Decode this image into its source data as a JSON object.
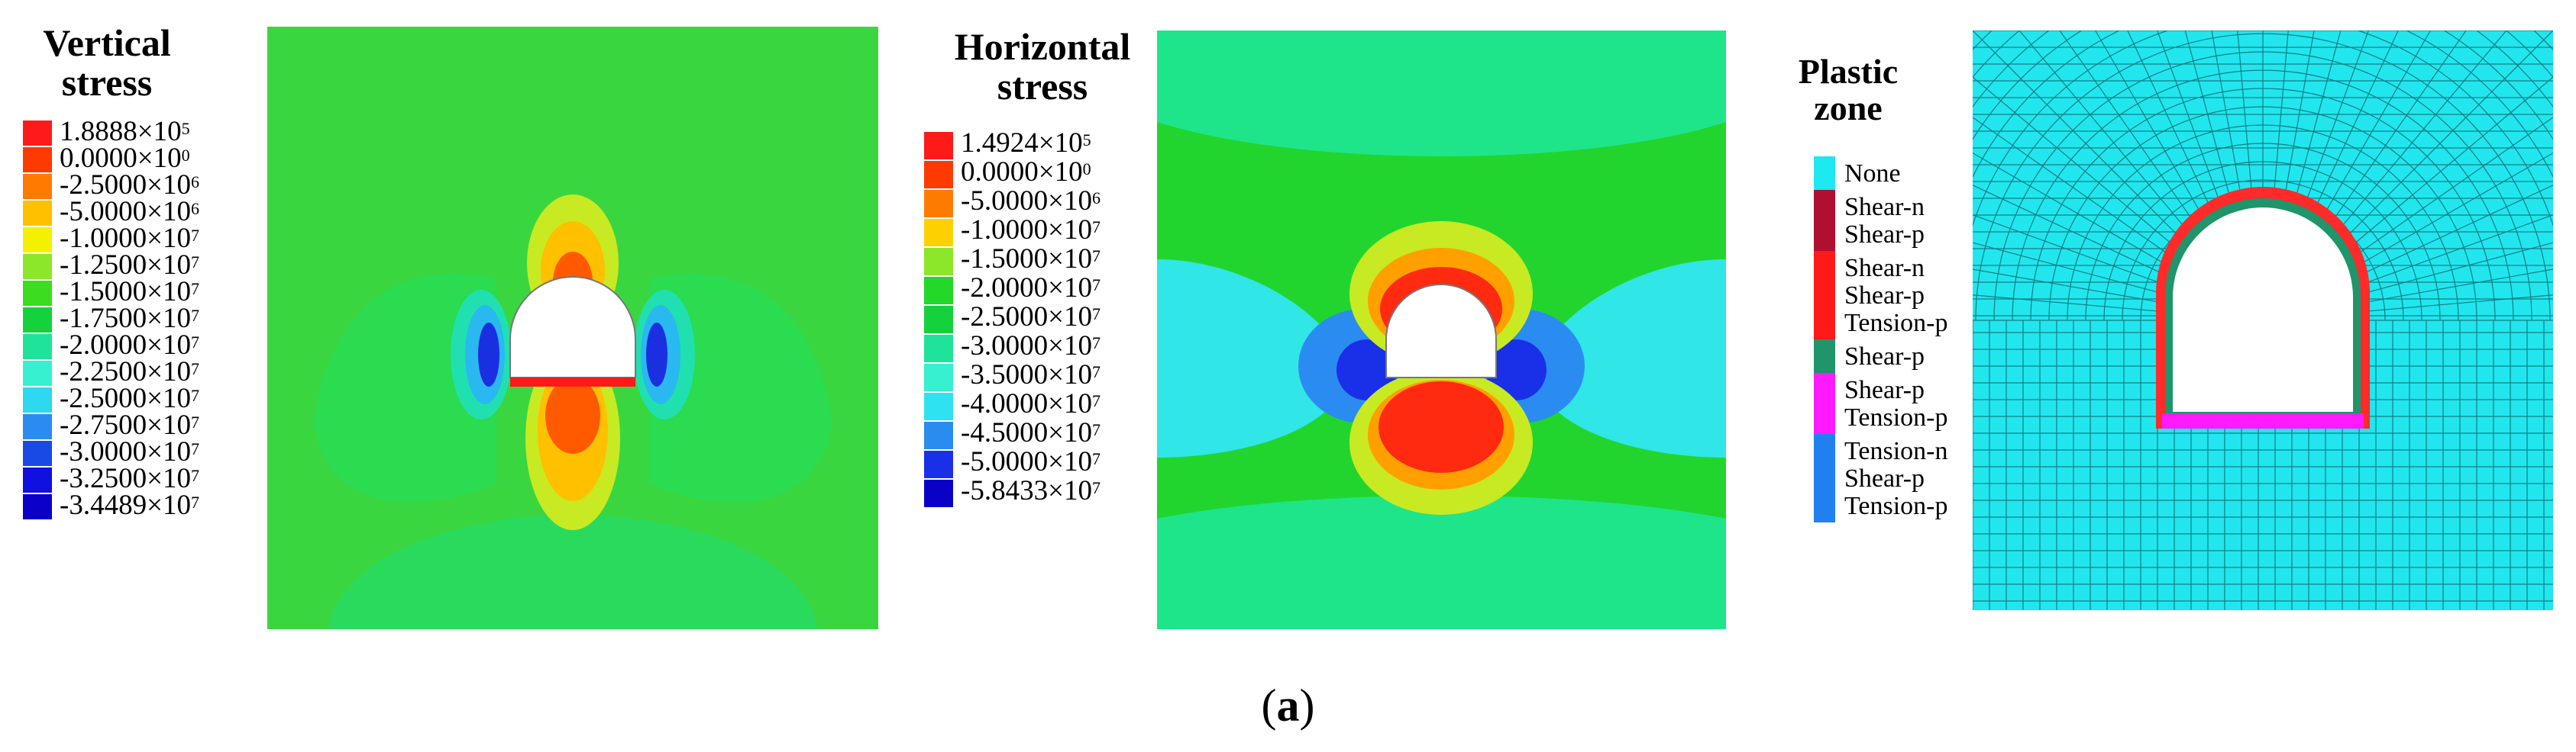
{
  "panels": [
    {
      "id": "vertical",
      "title_lines": [
        "Vertical",
        "stress"
      ],
      "legend": [
        {
          "mantissa": "1.8888",
          "exp": "5",
          "color": "#ff1a1a"
        },
        {
          "mantissa": "0.0000",
          "exp": "0",
          "color": "#ff3a00"
        },
        {
          "mantissa": "-2.5000",
          "exp": "6",
          "color": "#ff7a00"
        },
        {
          "mantissa": "-5.0000",
          "exp": "6",
          "color": "#ffc000"
        },
        {
          "mantissa": "-1.0000",
          "exp": "7",
          "color": "#f2f200"
        },
        {
          "mantissa": "-1.2500",
          "exp": "7",
          "color": "#8ce62a"
        },
        {
          "mantissa": "-1.5000",
          "exp": "7",
          "color": "#3cdc1e"
        },
        {
          "mantissa": "-1.7500",
          "exp": "7",
          "color": "#15d23c"
        },
        {
          "mantissa": "-2.0000",
          "exp": "7",
          "color": "#20e39a"
        },
        {
          "mantissa": "-2.2500",
          "exp": "7",
          "color": "#37f0d0"
        },
        {
          "mantissa": "-2.5000",
          "exp": "7",
          "color": "#2dd8f0"
        },
        {
          "mantissa": "-2.7500",
          "exp": "7",
          "color": "#2a8cf0"
        },
        {
          "mantissa": "-3.0000",
          "exp": "7",
          "color": "#1a4ae6"
        },
        {
          "mantissa": "-3.2500",
          "exp": "7",
          "color": "#1010e0"
        },
        {
          "mantissa": "-3.4489",
          "exp": "7",
          "color": "#0a00c8"
        }
      ]
    },
    {
      "id": "horizontal",
      "title_lines": [
        "Horizontal",
        "stress"
      ],
      "legend": [
        {
          "mantissa": "1.4924",
          "exp": "5",
          "color": "#ff1a1a"
        },
        {
          "mantissa": "0.0000",
          "exp": "0",
          "color": "#ff3a00"
        },
        {
          "mantissa": "-5.0000",
          "exp": "6",
          "color": "#ff7a00"
        },
        {
          "mantissa": "-1.0000",
          "exp": "7",
          "color": "#ffd000"
        },
        {
          "mantissa": "-1.5000",
          "exp": "7",
          "color": "#8ce62a"
        },
        {
          "mantissa": "-2.0000",
          "exp": "7",
          "color": "#22d828"
        },
        {
          "mantissa": "-2.5000",
          "exp": "7",
          "color": "#15d23c"
        },
        {
          "mantissa": "-3.0000",
          "exp": "7",
          "color": "#20e39a"
        },
        {
          "mantissa": "-3.5000",
          "exp": "7",
          "color": "#37f0d0"
        },
        {
          "mantissa": "-4.0000",
          "exp": "7",
          "color": "#2ee2f2"
        },
        {
          "mantissa": "-4.5000",
          "exp": "7",
          "color": "#2a8cf0"
        },
        {
          "mantissa": "-5.0000",
          "exp": "7",
          "color": "#1a30e8"
        },
        {
          "mantissa": "-5.8433",
          "exp": "7",
          "color": "#0a00c8"
        }
      ]
    }
  ],
  "plastic": {
    "title_lines": [
      "Plastic",
      "zone"
    ],
    "legend": [
      {
        "lines": [
          "None"
        ],
        "color": "#1ee8f0"
      },
      {
        "lines": [
          "Shear-n",
          "Shear-p"
        ],
        "color": "#b01030"
      },
      {
        "lines": [
          "Shear-n",
          "Shear-p",
          "Tension-p"
        ],
        "color": "#ff1a1a"
      },
      {
        "lines": [
          "Shear-p"
        ],
        "color": "#20946a"
      },
      {
        "lines": [
          "Shear-p",
          "Tension-p"
        ],
        "color": "#ff1aff"
      },
      {
        "lines": [
          "Tension-n",
          "Shear-p",
          "Tension-p"
        ],
        "color": "#2080f0"
      }
    ]
  },
  "times_symbol": "×",
  "exponent_base": "10",
  "caption": {
    "open": "(",
    "letter": "a",
    "close": ")"
  },
  "colors": {
    "background": "#ffffff",
    "mesh_fill": "#22e6ee",
    "mesh_line": "#0f7f86",
    "field_green": "#33d43c"
  }
}
